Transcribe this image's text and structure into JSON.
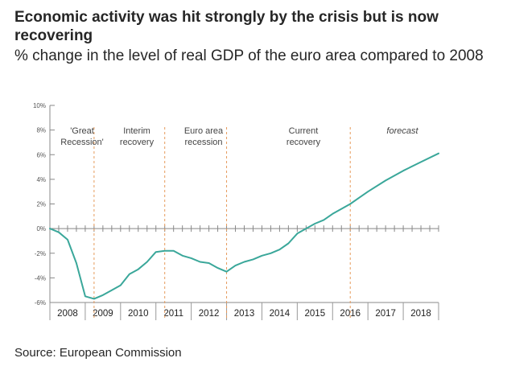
{
  "title": "Economic activity was hit strongly by the crisis but is now recovering",
  "subtitle": "% change in the level of real GDP of the euro area compared to 2008",
  "source": "Source: European Commission",
  "chart_data": {
    "type": "line",
    "ylim": [
      -6,
      10
    ],
    "yticks": [
      10,
      8,
      6,
      4,
      2,
      0,
      -2,
      -4,
      -6
    ],
    "ytick_labels": [
      "10%",
      "8%",
      "6%",
      "4%",
      "2%",
      "0%",
      "-2%",
      "-4%",
      "-6%"
    ],
    "xlim": [
      2008,
      2019
    ],
    "xtick_labels": [
      "2008",
      "2009",
      "2010",
      "2011",
      "2012",
      "2013",
      "2014",
      "2015",
      "2016",
      "2017",
      "2018"
    ],
    "grid": false,
    "color": "#3aa79a",
    "divider_color": "#e69b5c",
    "periods": [
      {
        "label": "'Great Recession'",
        "boundary": 2009.25
      },
      {
        "label": "Interim recovery",
        "boundary": 2011.25
      },
      {
        "label": "Euro area recession",
        "boundary": 2013.0
      },
      {
        "label": "Current recovery",
        "boundary": 2016.5
      },
      {
        "label": "forecast"
      }
    ],
    "series": [
      {
        "x": [
          2008.0,
          2008.25,
          2008.5,
          2008.75,
          2009.0,
          2009.25,
          2009.5,
          2009.75,
          2010.0,
          2010.25,
          2010.5,
          2010.75,
          2011.0,
          2011.25,
          2011.5,
          2011.75,
          2012.0,
          2012.25,
          2012.5,
          2012.75,
          2013.0,
          2013.25,
          2013.5,
          2013.75,
          2014.0,
          2014.25,
          2014.5,
          2014.75,
          2015.0,
          2015.25,
          2015.5,
          2015.75,
          2016.0,
          2016.25,
          2016.5,
          2016.75,
          2017.0,
          2017.5,
          2018.0,
          2018.5,
          2019.0
        ],
        "values": [
          0.0,
          -0.3,
          -0.9,
          -2.8,
          -5.5,
          -5.7,
          -5.4,
          -5.0,
          -4.6,
          -3.7,
          -3.3,
          -2.7,
          -1.9,
          -1.8,
          -1.8,
          -2.2,
          -2.4,
          -2.7,
          -2.8,
          -3.2,
          -3.5,
          -3.0,
          -2.7,
          -2.5,
          -2.2,
          -2.0,
          -1.7,
          -1.2,
          -0.4,
          0.0,
          0.4,
          0.7,
          1.2,
          1.6,
          2.0,
          2.5,
          3.0,
          3.9,
          4.7,
          5.4,
          6.1
        ]
      }
    ]
  }
}
